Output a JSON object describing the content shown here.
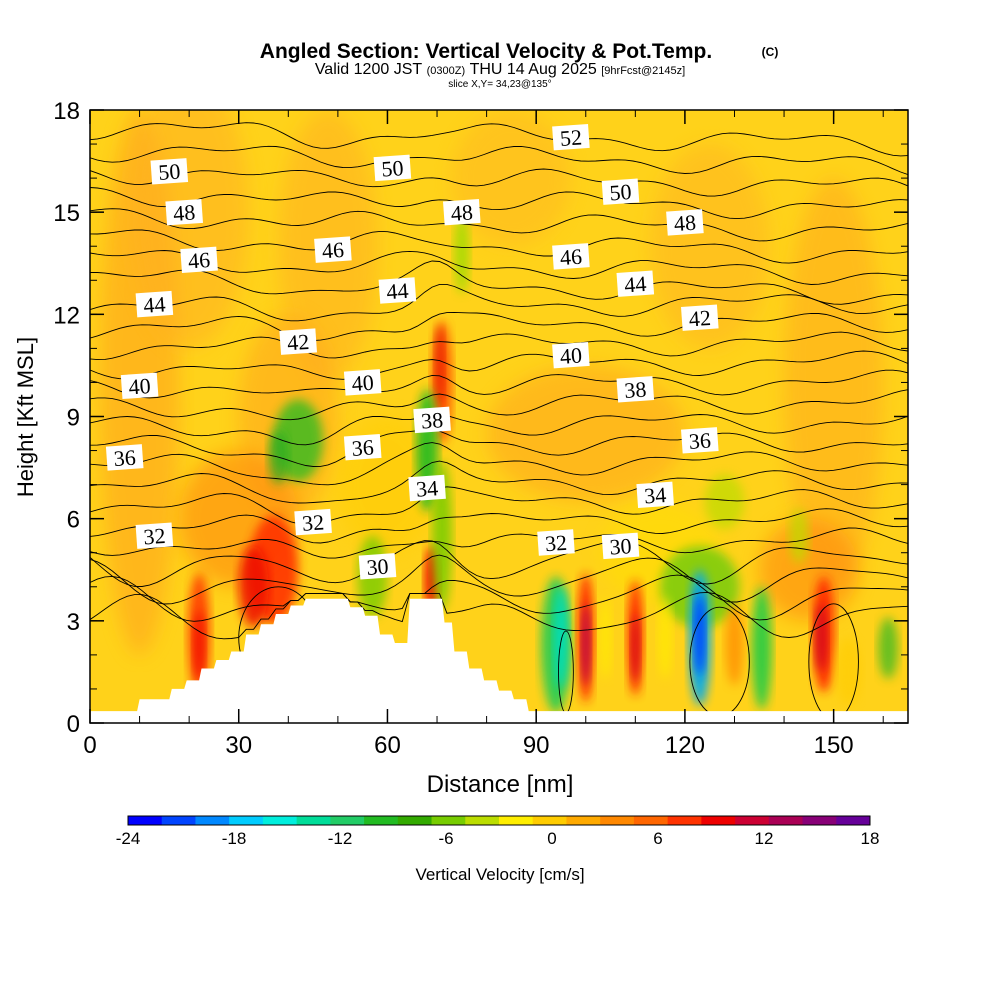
{
  "chart_data": {
    "type": "heatmap",
    "title": "Angled Section: Vertical Velocity & Pot.Temp.",
    "title_units": "(C)",
    "subtitle": {
      "valid": "Valid 1200 JST",
      "utc": "(0300Z)",
      "date": "THU 14 Aug 2025",
      "fcst": "[9hrFcst@2145z]"
    },
    "slice": "slice X,Y= 34,23@135°",
    "xlabel": "Distance [nm]",
    "ylabel": "Height [Kft MSL]",
    "xlim": [
      0,
      165
    ],
    "ylim": [
      0,
      18
    ],
    "x_ticks": [
      "0",
      "30",
      "60",
      "90",
      "120",
      "150"
    ],
    "y_ticks": [
      "0",
      "3",
      "6",
      "9",
      "12",
      "15",
      "18"
    ],
    "colorbar": {
      "label": "Vertical Velocity [cm/s]",
      "range": [
        -24,
        18
      ],
      "tick_labels": [
        "-24",
        "-18",
        "-12",
        "-6",
        "0",
        "6",
        "12",
        "18"
      ],
      "colors": [
        "#0000ff",
        "#0044ff",
        "#0088ff",
        "#00ccff",
        "#00eedd",
        "#00dd99",
        "#22cc66",
        "#22bb22",
        "#33aa00",
        "#77cc00",
        "#bbdd00",
        "#ffee00",
        "#ffcc00",
        "#ffaa00",
        "#ff8800",
        "#ff6600",
        "#ff3300",
        "#ee0000",
        "#cc0033",
        "#aa0055",
        "#880077",
        "#660099"
      ]
    },
    "theta_contours": {
      "levels": [
        28,
        29,
        30,
        31,
        32,
        33,
        34,
        35,
        36,
        37,
        38,
        39,
        40,
        41,
        42,
        43,
        44,
        45,
        46,
        47,
        48,
        49,
        50,
        51,
        52
      ],
      "labels": [
        {
          "text": "50",
          "x": 16,
          "y": 16.2
        },
        {
          "text": "50",
          "x": 61,
          "y": 16.3
        },
        {
          "text": "52",
          "x": 97,
          "y": 17.2
        },
        {
          "text": "48",
          "x": 19,
          "y": 15.0
        },
        {
          "text": "48",
          "x": 75,
          "y": 15.0
        },
        {
          "text": "50",
          "x": 107,
          "y": 15.6
        },
        {
          "text": "48",
          "x": 120,
          "y": 14.7
        },
        {
          "text": "46",
          "x": 22,
          "y": 13.6
        },
        {
          "text": "46",
          "x": 49,
          "y": 13.9
        },
        {
          "text": "46",
          "x": 97,
          "y": 13.7
        },
        {
          "text": "44",
          "x": 13,
          "y": 12.3
        },
        {
          "text": "44",
          "x": 62,
          "y": 12.7
        },
        {
          "text": "44",
          "x": 110,
          "y": 12.9
        },
        {
          "text": "42",
          "x": 42,
          "y": 11.2
        },
        {
          "text": "42",
          "x": 123,
          "y": 11.9
        },
        {
          "text": "40",
          "x": 10,
          "y": 9.9
        },
        {
          "text": "40",
          "x": 55,
          "y": 10.0
        },
        {
          "text": "40",
          "x": 97,
          "y": 10.8
        },
        {
          "text": "38",
          "x": 69,
          "y": 8.9
        },
        {
          "text": "38",
          "x": 110,
          "y": 9.8
        },
        {
          "text": "36",
          "x": 7,
          "y": 7.8
        },
        {
          "text": "36",
          "x": 55,
          "y": 8.1
        },
        {
          "text": "36",
          "x": 123,
          "y": 8.3
        },
        {
          "text": "34",
          "x": 68,
          "y": 6.9
        },
        {
          "text": "34",
          "x": 114,
          "y": 6.7
        },
        {
          "text": "32",
          "x": 13,
          "y": 5.5
        },
        {
          "text": "32",
          "x": 45,
          "y": 5.9
        },
        {
          "text": "32",
          "x": 94,
          "y": 5.3
        },
        {
          "text": "30",
          "x": 107,
          "y": 5.2
        },
        {
          "text": "30",
          "x": 58,
          "y": 4.6
        }
      ]
    },
    "terrain_kft": {
      "x": [
        0,
        5,
        9.5,
        10,
        16,
        16.5,
        19,
        19.5,
        22,
        22.5,
        25,
        25.5,
        28,
        28.5,
        31,
        31.5,
        34,
        34.5,
        37,
        37.5,
        40,
        40.5,
        43,
        43.5,
        52,
        52.5,
        55,
        55.5,
        58,
        58.5,
        61,
        61.5,
        64,
        64.5,
        71,
        71.5,
        73,
        73.5,
        76,
        76.5,
        79,
        79.5,
        82,
        82.5,
        85,
        85.5,
        88,
        88.5,
        90,
        165
      ],
      "y": [
        0.35,
        0.35,
        0.35,
        0.7,
        0.7,
        1.0,
        1.0,
        1.25,
        1.25,
        1.6,
        1.6,
        1.85,
        1.85,
        2.1,
        2.1,
        2.6,
        2.6,
        2.9,
        2.9,
        3.2,
        3.2,
        3.45,
        3.45,
        3.65,
        3.65,
        3.4,
        3.4,
        3.15,
        3.15,
        2.6,
        2.6,
        2.35,
        2.35,
        3.65,
        3.65,
        2.95,
        2.95,
        2.1,
        2.1,
        1.6,
        1.6,
        1.25,
        1.25,
        0.95,
        0.95,
        0.7,
        0.7,
        0.35,
        0.35,
        0.35
      ]
    }
  }
}
